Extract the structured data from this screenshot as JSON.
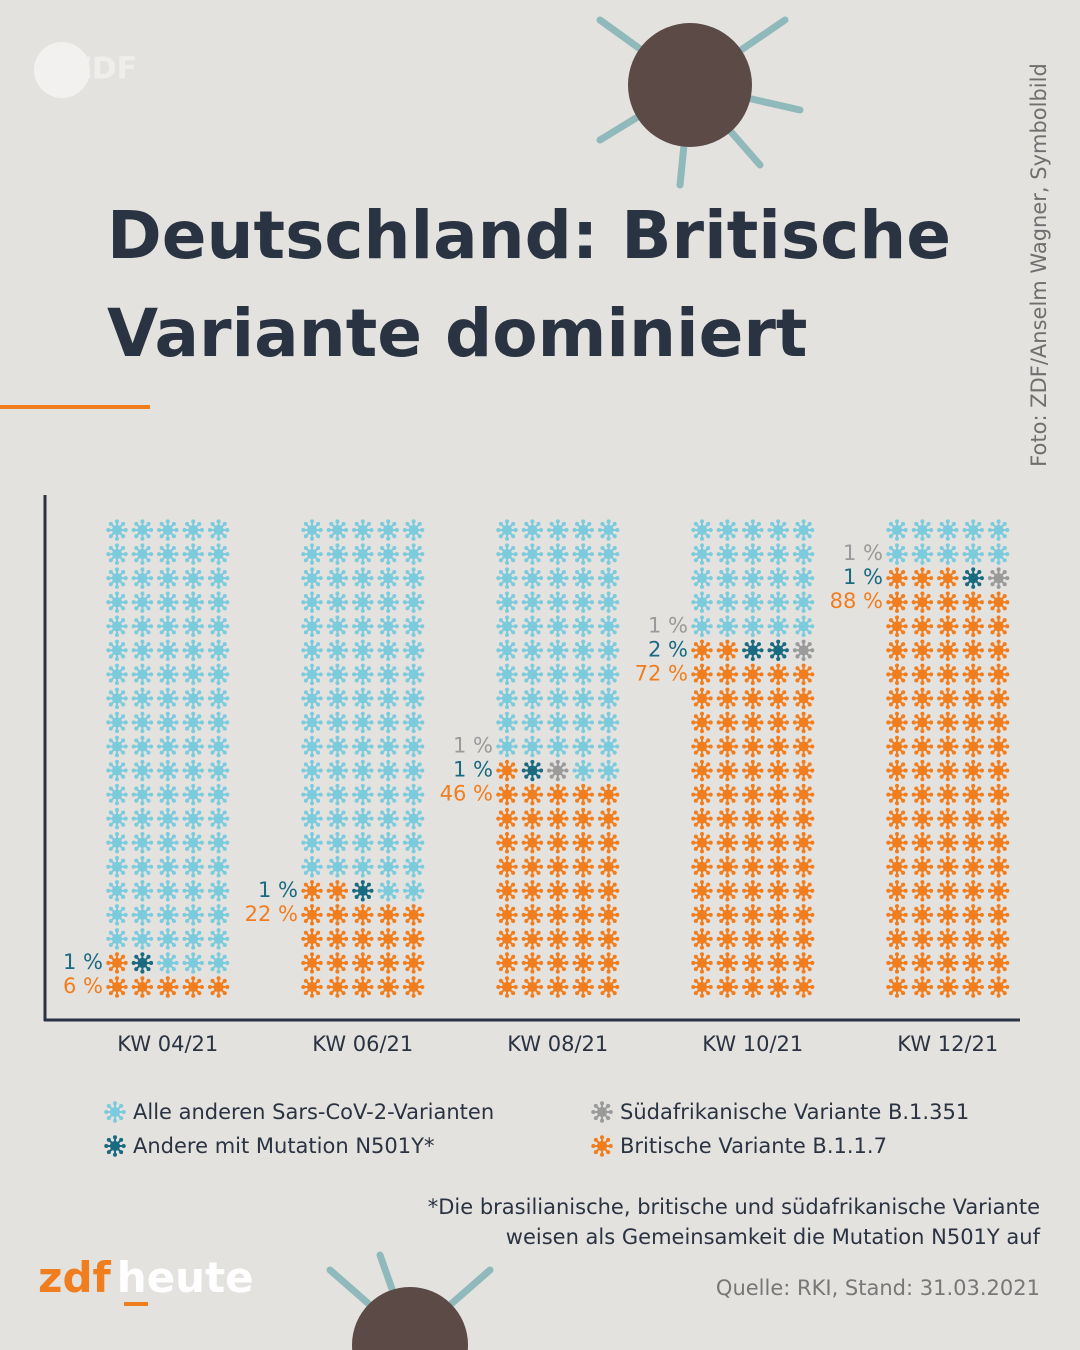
{
  "chart_data": {
    "type": "waffle",
    "title": [
      "Deutschland: Britische",
      "Variante dominiert"
    ],
    "categories": [
      "KW 04/21",
      "KW 06/21",
      "KW 08/21",
      "KW 10/21",
      "KW 12/21"
    ],
    "series": [
      {
        "name": "Britische Variante B.1.1.7",
        "color": "#f07d1e",
        "values": [
          6,
          22,
          46,
          72,
          88
        ],
        "value_labels": [
          "6 %",
          "22 %",
          "46 %",
          "72 %",
          "88 %"
        ]
      },
      {
        "name": "Andere mit Mutation N501Y*",
        "color": "#1a6a80",
        "values": [
          1,
          1,
          1,
          2,
          1
        ],
        "value_labels": [
          "1 %",
          "1 %",
          "1 %",
          "2 %",
          "1 %"
        ]
      },
      {
        "name": "Südafrikanische Variante B.1.351",
        "color": "#9a9a9a",
        "values": [
          null,
          null,
          1,
          1,
          1
        ],
        "value_labels": [
          null,
          null,
          "1 %",
          "1 %",
          "1 %"
        ]
      },
      {
        "name": "Alle anderen Sars-CoV-2-Varianten",
        "color": "#7ccbdc",
        "values": [
          93,
          77,
          52,
          25,
          10
        ]
      }
    ]
  },
  "logo": "ZDF",
  "credit": "Foto: ZDF/Anselm Wagner, Symbolbild",
  "footnote": [
    "*Die brasilianische, britische und südafrikanische Variante",
    "weisen als Gemeinsamkeit die Mutation N501Y auf"
  ],
  "source": "Quelle: RKI, Stand: 31.03.2021",
  "brand": {
    "zdf": "zdf",
    "heute": "heute"
  }
}
